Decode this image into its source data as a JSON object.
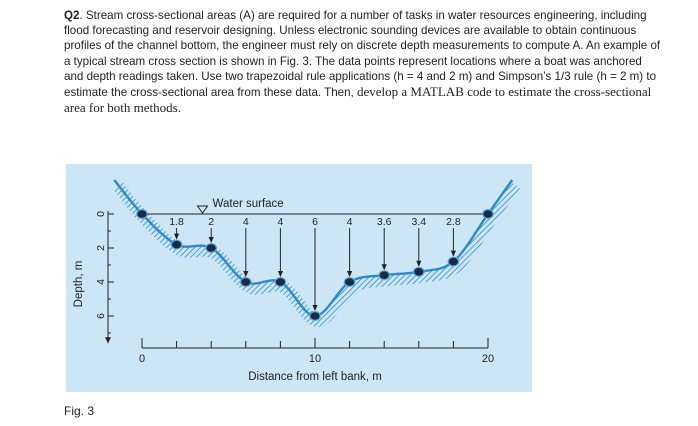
{
  "question": {
    "label": "Q2",
    "text": ". Stream cross-sectional areas (A) are required for a number of tasks in water resources engineering, including flood forecasting and reservoir designing. Unless electronic sounding devices are available to obtain continuous profiles of the channel bottom, the engineer must rely on discrete depth measurements to compute A. An example of a typical stream cross section is shown in Fig. 3. The data points represent locations where a boat was anchored and depth readings taken. Use two trapezoidal rule applications (h = 4 and 2 m) and Simpson’s 1/3 rule (h = 2 m) to estimate the cross-sectional area from these data. Then, ",
    "text_serif": "develop a MATLAB code to estimate the cross-sectional area for both methods."
  },
  "figure": {
    "water_surface_label": "Water surface",
    "depth_labels": [
      "1.8",
      "2",
      "4",
      "4",
      "6",
      "4",
      "3.6",
      "3.4",
      "2.8"
    ],
    "caption": "Fig. 3",
    "colors": {
      "background": "#cce6f6",
      "channel": "#2e8bc8",
      "points": "#1a2a44"
    }
  },
  "chart_data": {
    "type": "line",
    "title": "",
    "xlabel": "Distance from left bank, m",
    "ylabel": "Depth, m",
    "x": [
      0,
      2,
      4,
      6,
      8,
      10,
      12,
      14,
      16,
      18,
      20
    ],
    "depth": [
      0,
      1.8,
      2,
      4,
      4,
      6,
      4,
      3.6,
      3.4,
      2.8,
      0
    ],
    "xticks": [
      "0",
      "10",
      "20"
    ],
    "yticks": [
      "0",
      "2",
      "4",
      "6"
    ],
    "xlim": [
      0,
      20
    ],
    "ylim": [
      0,
      6
    ],
    "y_inverted": true
  }
}
